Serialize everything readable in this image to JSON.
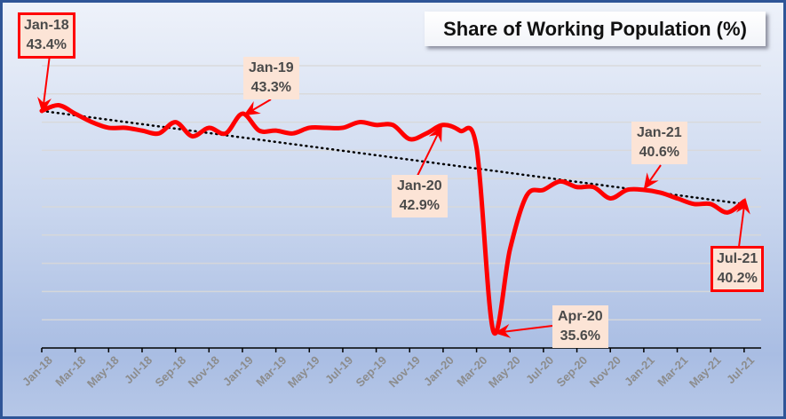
{
  "chart_data": {
    "type": "line",
    "title": "Share of Working Population (%)",
    "xlabel": "",
    "ylabel": "",
    "ylim": [
      35,
      45
    ],
    "grid": true,
    "gridline_step": 1,
    "legend": "none",
    "trendline": {
      "type": "linear",
      "style": "dotted",
      "color": "#000000",
      "from": 43.4,
      "to": 40.1
    },
    "tick_labels": [
      "Jan-18",
      "Mar-18",
      "May-18",
      "Jul-18",
      "Sep-18",
      "Nov-18",
      "Jan-19",
      "Mar-19",
      "May-19",
      "Jul-19",
      "Sep-19",
      "Nov-19",
      "Jan-20",
      "Mar-20",
      "May-20",
      "Jul-20",
      "Sep-20",
      "Nov-20",
      "Jan-21",
      "Mar-21",
      "May-21",
      "Jul-21"
    ],
    "x": [
      "Jan-18",
      "Feb-18",
      "Mar-18",
      "Apr-18",
      "May-18",
      "Jun-18",
      "Jul-18",
      "Aug-18",
      "Sep-18",
      "Oct-18",
      "Nov-18",
      "Dec-18",
      "Jan-19",
      "Feb-19",
      "Mar-19",
      "Apr-19",
      "May-19",
      "Jun-19",
      "Jul-19",
      "Aug-19",
      "Sep-19",
      "Oct-19",
      "Nov-19",
      "Dec-19",
      "Jan-20",
      "Feb-20",
      "Mar-20",
      "Apr-20",
      "May-20",
      "Jun-20",
      "Jul-20",
      "Aug-20",
      "Sep-20",
      "Oct-20",
      "Nov-20",
      "Dec-20",
      "Jan-21",
      "Feb-21",
      "Mar-21",
      "Apr-21",
      "May-21",
      "Jun-21",
      "Jul-21"
    ],
    "series": [
      {
        "name": "Share of Working Population (%)",
        "color": "#ff0000",
        "values": [
          43.4,
          43.6,
          43.3,
          43.0,
          42.8,
          42.8,
          42.7,
          42.6,
          43.0,
          42.5,
          42.8,
          42.6,
          43.3,
          42.7,
          42.7,
          42.6,
          42.8,
          42.8,
          42.8,
          43.0,
          42.9,
          42.9,
          42.4,
          42.6,
          42.9,
          42.7,
          42.1,
          35.6,
          38.5,
          40.4,
          40.6,
          40.9,
          40.7,
          40.7,
          40.3,
          40.6,
          40.6,
          40.5,
          40.3,
          40.1,
          40.1,
          39.8,
          40.2
        ]
      }
    ],
    "annotations": [
      {
        "label": "Jan-18",
        "value": "43.4%",
        "boxed": true
      },
      {
        "label": "Jan-19",
        "value": "43.3%",
        "boxed": false
      },
      {
        "label": "Jan-20",
        "value": "42.9%",
        "boxed": false
      },
      {
        "label": "Apr-20",
        "value": "35.6%",
        "boxed": false
      },
      {
        "label": "Jan-21",
        "value": "40.6%",
        "boxed": false
      },
      {
        "label": "Jul-21",
        "value": "40.2%",
        "boxed": true
      }
    ]
  }
}
